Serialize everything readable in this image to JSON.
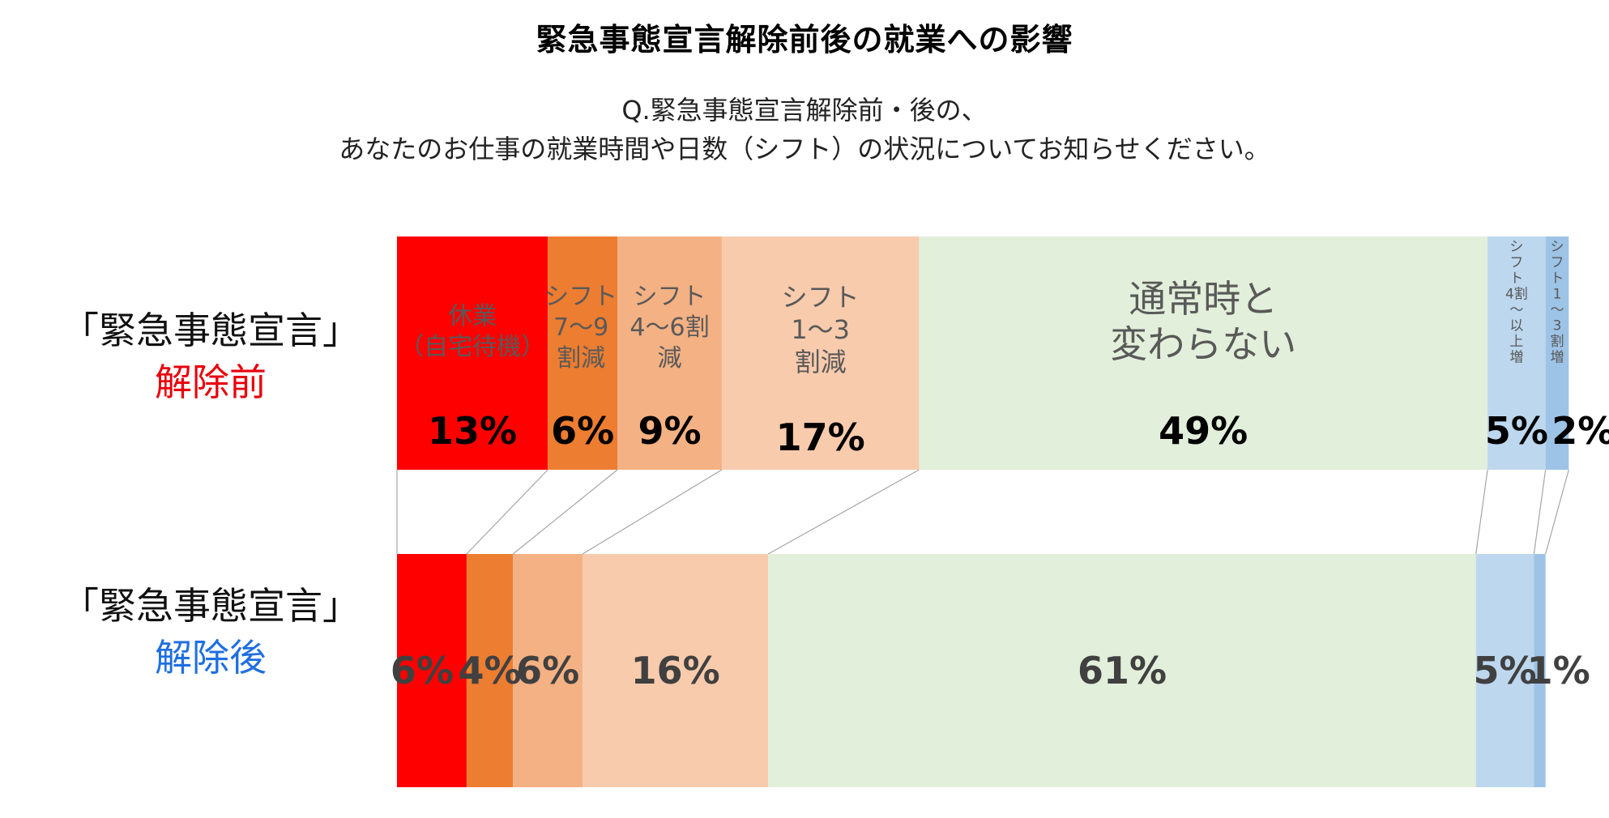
{
  "title": "緊急事態宣言解除前後の就業への影響",
  "subtitle": {
    "line1": "Q.緊急事態宣言解除前・後の、",
    "line2": "あなたのお仕事の就業時間や日数（シフト）の状況についてお知らせください。"
  },
  "rows": [
    {
      "line1": "「緊急事態宣言」",
      "line2": "解除前"
    },
    {
      "line1": "「緊急事態宣言」",
      "line2": "解除後"
    }
  ],
  "chart_data": {
    "type": "bar",
    "orientation": "horizontal-stacked-100",
    "categories": [
      "「緊急事態宣言」解除前",
      "「緊急事態宣言」解除後"
    ],
    "series": [
      {
        "name": "休業（自宅待機）",
        "label_lines": [
          "休業",
          "（自宅待機）"
        ],
        "values": [
          13,
          6
        ],
        "color": "#ff0000"
      },
      {
        "name": "シフト7〜9割減",
        "label_lines": [
          "シフト",
          "7〜9",
          "割減"
        ],
        "values": [
          6,
          4
        ],
        "color": "#ed7d31"
      },
      {
        "name": "シフト4〜6割減",
        "label_lines": [
          "シフト",
          "4〜6割",
          "減"
        ],
        "values": [
          9,
          6
        ],
        "color": "#f4b183"
      },
      {
        "name": "シフト1〜3割減",
        "label_lines": [
          "シフト",
          "1〜3",
          "割減"
        ],
        "values": [
          17,
          16
        ],
        "color": "#f8cbad"
      },
      {
        "name": "通常時と変わらない",
        "label_lines": [
          "通常時と",
          "変わらない"
        ],
        "values": [
          49,
          61
        ],
        "color": "#e2efda"
      },
      {
        "name": "シフト4割〜以上増",
        "label_lines": [
          "シ",
          "フ",
          "ト",
          "4割",
          "〜",
          "以",
          "上",
          "増"
        ],
        "values": [
          5,
          5
        ],
        "color": "#bdd7ee"
      },
      {
        "name": "シフト1〜3割増",
        "label_lines": [
          "シ",
          "フ",
          "ト",
          "1",
          "〜",
          "3",
          "割",
          "増"
        ],
        "values": [
          2,
          1
        ],
        "color": "#9dc3e6"
      }
    ],
    "value_labels": [
      [
        "13%",
        "6%",
        "9%",
        "17%",
        "49%",
        "5%",
        "2%"
      ],
      [
        "6%",
        "4%",
        "6%",
        "16%",
        "61%",
        "5%",
        "1%"
      ]
    ],
    "xlim": [
      0,
      100
    ],
    "grid": false,
    "legend": "none"
  }
}
